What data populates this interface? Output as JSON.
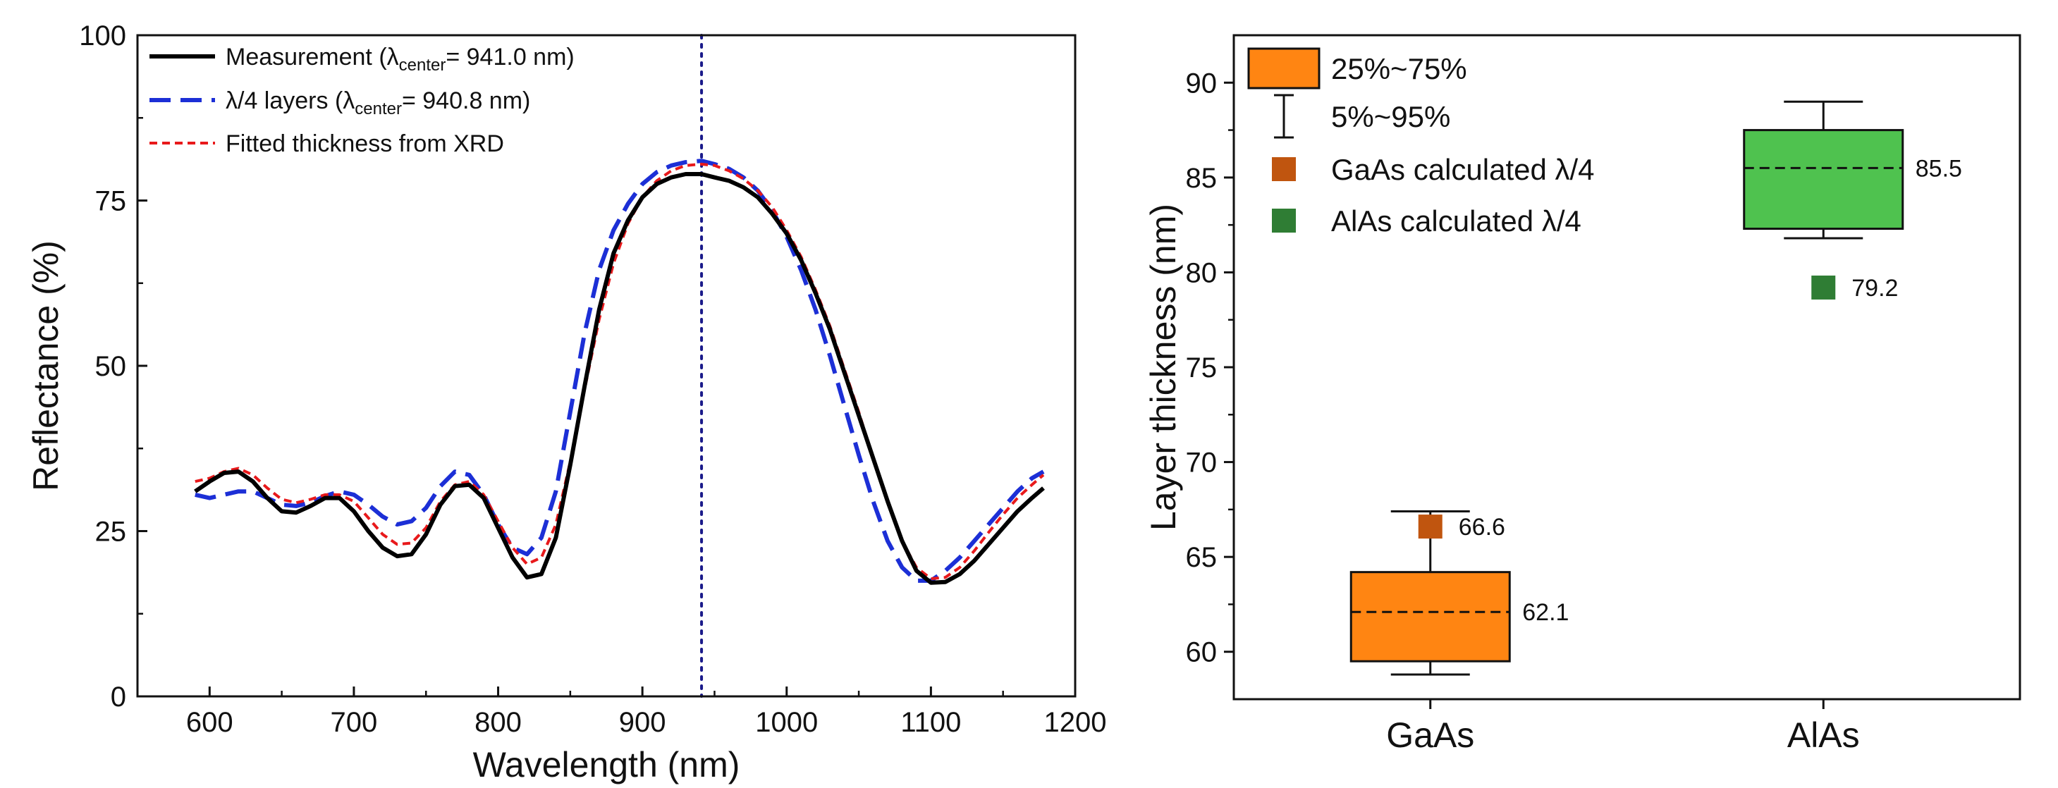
{
  "chart_data": [
    {
      "type": "line",
      "xlabel": "Wavelength (nm)",
      "ylabel": "Reflectance (%)",
      "xlim": [
        550,
        1200
      ],
      "ylim": [
        0,
        100
      ],
      "xticks": [
        "600",
        "700",
        "800",
        "900",
        "1000",
        "1100",
        "1200"
      ],
      "yticks": [
        "0",
        "25",
        "50",
        "75",
        "100"
      ],
      "legend_position": "top-left",
      "vline": {
        "x": 941.0,
        "style": "dotted",
        "color": "#1a1a8a"
      },
      "legend": [
        {
          "pre": "Measurement (",
          "sym": "λ",
          "sub": "center",
          "post": "= 941.0 nm)"
        },
        {
          "pre": "λ/4 layers (",
          "sym": "λ",
          "sub": "center",
          "post": "= 940.8 nm)"
        },
        {
          "pre": "Fitted thickness from XRD",
          "sym": "",
          "sub": "",
          "post": ""
        }
      ],
      "series": [
        {
          "name": "Measurement (λcenter= 941.0 nm)",
          "color": "#000000",
          "dash": "solid",
          "points": [
            [
              590,
              31.0
            ],
            [
              600,
              32.5
            ],
            [
              610,
              33.8
            ],
            [
              620,
              34.0
            ],
            [
              630,
              32.5
            ],
            [
              640,
              30.0
            ],
            [
              650,
              28.0
            ],
            [
              660,
              27.8
            ],
            [
              670,
              28.8
            ],
            [
              680,
              30.0
            ],
            [
              690,
              30.0
            ],
            [
              700,
              28.0
            ],
            [
              710,
              25.0
            ],
            [
              720,
              22.5
            ],
            [
              730,
              21.2
            ],
            [
              740,
              21.5
            ],
            [
              750,
              24.5
            ],
            [
              760,
              29.0
            ],
            [
              770,
              31.8
            ],
            [
              780,
              32.0
            ],
            [
              790,
              30.0
            ],
            [
              800,
              25.5
            ],
            [
              810,
              21.0
            ],
            [
              820,
              18.0
            ],
            [
              830,
              18.5
            ],
            [
              840,
              24.0
            ],
            [
              850,
              35.0
            ],
            [
              860,
              47.0
            ],
            [
              870,
              58.5
            ],
            [
              880,
              67.0
            ],
            [
              890,
              72.0
            ],
            [
              900,
              75.5
            ],
            [
              910,
              77.5
            ],
            [
              920,
              78.5
            ],
            [
              930,
              79.0
            ],
            [
              941,
              79.0
            ],
            [
              950,
              78.5
            ],
            [
              960,
              78.0
            ],
            [
              970,
              77.0
            ],
            [
              980,
              75.5
            ],
            [
              990,
              73.0
            ],
            [
              1000,
              70.0
            ],
            [
              1010,
              66.0
            ],
            [
              1020,
              61.0
            ],
            [
              1030,
              55.5
            ],
            [
              1040,
              49.0
            ],
            [
              1050,
              42.5
            ],
            [
              1060,
              36.0
            ],
            [
              1070,
              29.5
            ],
            [
              1080,
              23.5
            ],
            [
              1090,
              19.0
            ],
            [
              1100,
              17.2
            ],
            [
              1110,
              17.3
            ],
            [
              1120,
              18.5
            ],
            [
              1130,
              20.5
            ],
            [
              1140,
              23.0
            ],
            [
              1150,
              25.5
            ],
            [
              1160,
              28.0
            ],
            [
              1170,
              30.0
            ],
            [
              1178,
              31.5
            ]
          ]
        },
        {
          "name": "λ/4 layers (λcenter= 940.8 nm)",
          "color": "#1c2fd6",
          "dash": "long",
          "points": [
            [
              590,
              30.5
            ],
            [
              600,
              30.0
            ],
            [
              610,
              30.5
            ],
            [
              620,
              31.0
            ],
            [
              630,
              31.0
            ],
            [
              640,
              30.0
            ],
            [
              650,
              29.0
            ],
            [
              660,
              28.8
            ],
            [
              670,
              29.3
            ],
            [
              680,
              30.3
            ],
            [
              690,
              31.0
            ],
            [
              700,
              30.5
            ],
            [
              710,
              29.0
            ],
            [
              720,
              27.2
            ],
            [
              730,
              26.0
            ],
            [
              740,
              26.5
            ],
            [
              750,
              28.5
            ],
            [
              760,
              31.8
            ],
            [
              770,
              34.0
            ],
            [
              780,
              33.5
            ],
            [
              790,
              30.5
            ],
            [
              800,
              26.0
            ],
            [
              810,
              22.5
            ],
            [
              820,
              21.5
            ],
            [
              830,
              24.0
            ],
            [
              840,
              31.0
            ],
            [
              850,
              43.0
            ],
            [
              860,
              55.0
            ],
            [
              870,
              64.5
            ],
            [
              880,
              70.5
            ],
            [
              890,
              74.5
            ],
            [
              900,
              77.5
            ],
            [
              910,
              79.3
            ],
            [
              920,
              80.3
            ],
            [
              930,
              80.8
            ],
            [
              941,
              81.0
            ],
            [
              950,
              80.5
            ],
            [
              960,
              79.8
            ],
            [
              970,
              78.5
            ],
            [
              980,
              76.5
            ],
            [
              990,
              73.5
            ],
            [
              1000,
              69.5
            ],
            [
              1010,
              64.5
            ],
            [
              1020,
              58.5
            ],
            [
              1030,
              51.5
            ],
            [
              1040,
              44.0
            ],
            [
              1050,
              36.5
            ],
            [
              1060,
              29.5
            ],
            [
              1070,
              23.5
            ],
            [
              1080,
              19.5
            ],
            [
              1090,
              17.5
            ],
            [
              1100,
              17.5
            ],
            [
              1110,
              19.0
            ],
            [
              1120,
              21.0
            ],
            [
              1130,
              23.5
            ],
            [
              1140,
              26.0
            ],
            [
              1150,
              28.5
            ],
            [
              1160,
              31.0
            ],
            [
              1170,
              33.0
            ],
            [
              1178,
              34.0
            ]
          ]
        },
        {
          "name": "Fitted thickness from XRD",
          "color": "#e8191b",
          "dash": "short",
          "points": [
            [
              590,
              32.5
            ],
            [
              600,
              33.0
            ],
            [
              610,
              34.0
            ],
            [
              620,
              34.5
            ],
            [
              630,
              33.5
            ],
            [
              640,
              31.5
            ],
            [
              650,
              29.8
            ],
            [
              660,
              29.3
            ],
            [
              670,
              29.8
            ],
            [
              680,
              30.5
            ],
            [
              690,
              30.5
            ],
            [
              700,
              29.5
            ],
            [
              710,
              27.0
            ],
            [
              720,
              24.5
            ],
            [
              730,
              23.0
            ],
            [
              740,
              23.2
            ],
            [
              750,
              25.5
            ],
            [
              760,
              29.5
            ],
            [
              770,
              32.0
            ],
            [
              780,
              32.5
            ],
            [
              790,
              30.5
            ],
            [
              800,
              26.5
            ],
            [
              810,
              22.5
            ],
            [
              820,
              20.0
            ],
            [
              830,
              21.0
            ],
            [
              840,
              26.0
            ],
            [
              850,
              35.5
            ],
            [
              860,
              46.5
            ],
            [
              870,
              57.0
            ],
            [
              880,
              65.5
            ],
            [
              890,
              71.5
            ],
            [
              900,
              75.5
            ],
            [
              910,
              78.0
            ],
            [
              920,
              79.5
            ],
            [
              930,
              80.3
            ],
            [
              941,
              80.5
            ],
            [
              950,
              80.3
            ],
            [
              960,
              79.5
            ],
            [
              970,
              78.3
            ],
            [
              980,
              76.5
            ],
            [
              990,
              74.0
            ],
            [
              1000,
              70.5
            ],
            [
              1010,
              66.5
            ],
            [
              1020,
              61.5
            ],
            [
              1030,
              56.0
            ],
            [
              1040,
              49.5
            ],
            [
              1050,
              43.0
            ],
            [
              1060,
              36.0
            ],
            [
              1070,
              29.5
            ],
            [
              1080,
              23.5
            ],
            [
              1090,
              19.5
            ],
            [
              1100,
              17.8
            ],
            [
              1110,
              18.0
            ],
            [
              1120,
              19.5
            ],
            [
              1130,
              22.0
            ],
            [
              1140,
              24.8
            ],
            [
              1150,
              27.5
            ],
            [
              1160,
              30.0
            ],
            [
              1170,
              32.0
            ],
            [
              1178,
              33.5
            ]
          ]
        }
      ]
    },
    {
      "type": "box",
      "categories": [
        "GaAs",
        "AlAs"
      ],
      "ylabel": "Layer thickness (nm)",
      "ylim": [
        57.5,
        92.5
      ],
      "yticks": [
        "60",
        "65",
        "70",
        "75",
        "80",
        "85",
        "90"
      ],
      "legend_position": "top-left",
      "legend": [
        {
          "label": "25%~75%",
          "kind": "box"
        },
        {
          "label": "5%~95%",
          "kind": "whisker"
        },
        {
          "label": "GaAs calculated λ/4",
          "kind": "gaas-marker"
        },
        {
          "label": "AlAs calculated λ/4",
          "kind": "alas-marker"
        }
      ],
      "boxes": [
        {
          "category": "GaAs",
          "color": "#ff8512",
          "median_label": "62.1",
          "q1": 59.5,
          "median": 62.1,
          "q3": 64.2,
          "p5": 58.8,
          "p95": 67.4,
          "calc": 66.6,
          "calc_label": "66.6",
          "calc_color": "#c0550f"
        },
        {
          "category": "AlAs",
          "color": "#4fc24f",
          "median_label": "85.5",
          "q1": 82.3,
          "median": 85.5,
          "q3": 87.5,
          "p5": 81.8,
          "p95": 89.0,
          "calc": 79.2,
          "calc_label": "79.2",
          "calc_color": "#2f7d34"
        }
      ]
    }
  ]
}
